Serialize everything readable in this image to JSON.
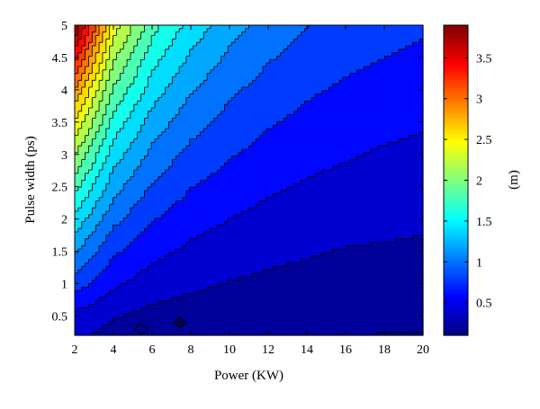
{
  "chart_data": {
    "type": "heatmap",
    "subtype": "filled-contour",
    "title": "",
    "xlabel": "Power (KW)",
    "ylabel": "Pulse width (ps)",
    "colorbar_label": "(m)",
    "xlim": [
      2,
      20
    ],
    "ylim": [
      0.2,
      5
    ],
    "x_ticks": [
      2,
      4,
      6,
      8,
      10,
      12,
      14,
      16,
      18,
      20
    ],
    "x_tick_labels": [
      "2",
      "4",
      "6",
      "8",
      "10",
      "12",
      "14",
      "16",
      "18",
      "20"
    ],
    "y_ticks": [
      0.5,
      1,
      1.5,
      2,
      2.5,
      3,
      3.5,
      4,
      4.5,
      5
    ],
    "y_tick_labels": [
      "0.5",
      "1",
      "1.5",
      "2",
      "2.5",
      "3",
      "3.5",
      "4",
      "4.5",
      "5"
    ],
    "colorbar_range": [
      0.1,
      3.9
    ],
    "colorbar_ticks": [
      0.5,
      1,
      1.5,
      2,
      2.5,
      3,
      3.5
    ],
    "colorbar_tick_labels": [
      "0.5",
      "1",
      "1.5",
      "2",
      "2.5",
      "3",
      "3.5"
    ],
    "colormap": "jet",
    "contour_interval": 0.2,
    "x_samples": [
      2,
      4,
      6,
      8,
      10,
      12,
      14,
      16,
      18,
      20
    ],
    "y_samples": [
      0.2,
      0.5,
      1,
      1.5,
      2,
      2.5,
      3,
      3.5,
      4,
      4.5,
      5
    ],
    "z_values": [
      [
        0.36,
        0.22,
        0.13,
        0.13,
        0.15,
        0.15,
        0.15,
        0.13,
        0.09,
        0.09
      ],
      [
        0.45,
        0.32,
        0.24,
        0.21,
        0.19,
        0.17,
        0.16,
        0.15,
        0.14,
        0.13
      ],
      [
        0.8,
        0.54,
        0.4,
        0.34,
        0.29,
        0.26,
        0.24,
        0.22,
        0.21,
        0.2
      ],
      [
        1.12,
        0.74,
        0.56,
        0.46,
        0.4,
        0.35,
        0.32,
        0.29,
        0.28,
        0.27
      ],
      [
        1.45,
        0.96,
        0.72,
        0.58,
        0.5,
        0.44,
        0.4,
        0.37,
        0.35,
        0.33
      ],
      [
        1.78,
        1.18,
        0.88,
        0.71,
        0.61,
        0.53,
        0.48,
        0.44,
        0.42,
        0.4
      ],
      [
        2.12,
        1.4,
        1.05,
        0.84,
        0.72,
        0.63,
        0.56,
        0.52,
        0.48,
        0.46
      ],
      [
        2.5,
        1.63,
        1.22,
        0.98,
        0.83,
        0.72,
        0.65,
        0.59,
        0.55,
        0.52
      ],
      [
        2.9,
        1.88,
        1.4,
        1.12,
        0.94,
        0.82,
        0.73,
        0.67,
        0.62,
        0.59
      ],
      [
        3.4,
        2.14,
        1.58,
        1.27,
        1.06,
        0.92,
        0.82,
        0.75,
        0.7,
        0.66
      ],
      [
        3.9,
        2.42,
        1.78,
        1.42,
        1.19,
        1.03,
        0.91,
        0.83,
        0.77,
        0.73
      ]
    ],
    "grid": false,
    "colorbar_position": "right"
  }
}
